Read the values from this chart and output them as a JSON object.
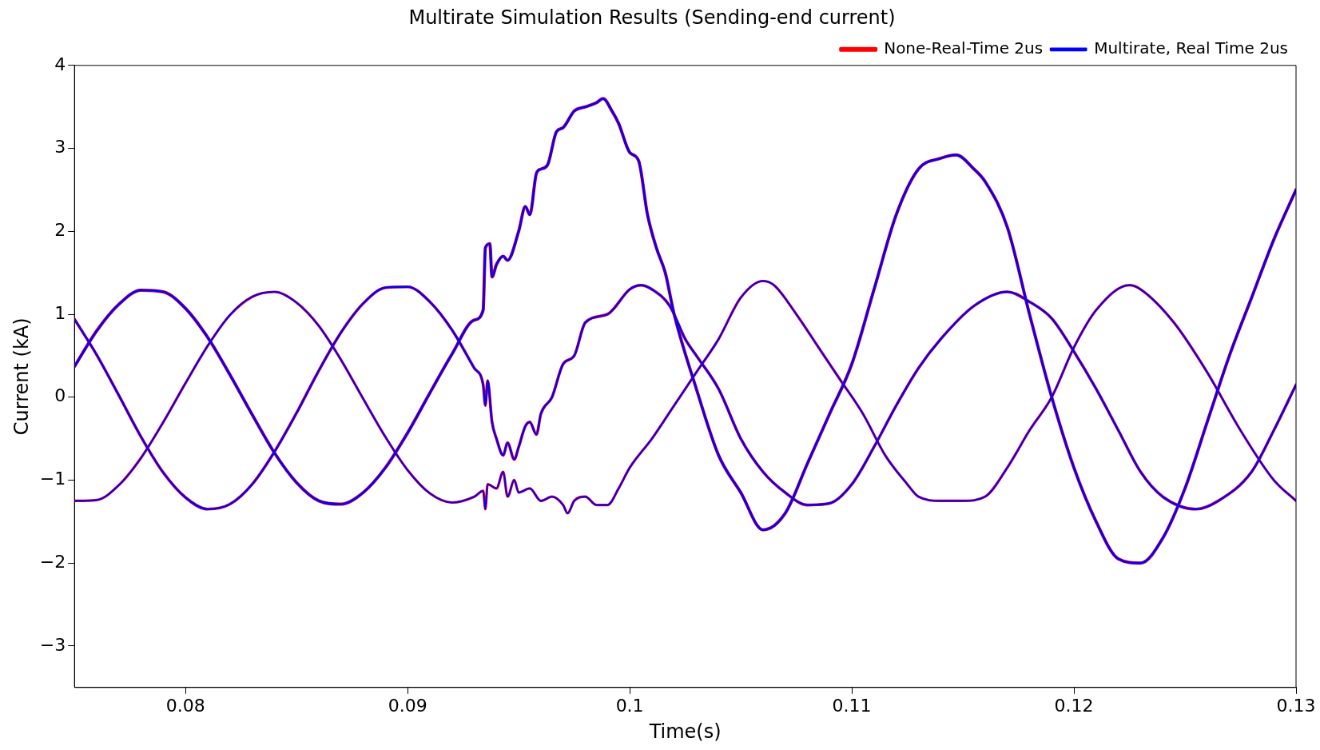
{
  "chart_data": {
    "type": "line",
    "title": "Multirate Simulation Results (Sending-end current)",
    "xlabel": "Time(s)",
    "ylabel": "Current (kA)",
    "xlim": [
      0.075,
      0.13
    ],
    "xticks": [
      0.08,
      0.09,
      0.1,
      0.11,
      0.12,
      0.13
    ],
    "ylim": [
      -3.5,
      4
    ],
    "yticks": [
      {
        "value": -3,
        "label": "−3"
      },
      {
        "value": -2,
        "label": "−2"
      },
      {
        "value": -1,
        "label": "−1"
      },
      0,
      1,
      2,
      3,
      4
    ],
    "grid": false,
    "legend": "top right",
    "marker": "none",
    "line_style": "solid",
    "series": [
      {
        "name": "None-Real-Time 2us",
        "color": "#ff0000",
        "x": [
          0.075,
          0.076,
          0.077,
          0.078,
          0.079,
          0.08,
          0.081,
          0.082,
          0.083,
          0.084,
          0.085,
          0.086,
          0.087,
          0.088,
          0.089,
          0.09,
          0.091,
          0.092,
          0.093,
          0.0934,
          0.0935,
          0.0937,
          0.0938,
          0.094,
          0.0943,
          0.0945,
          0.095,
          0.0953,
          0.0955,
          0.0958,
          0.096,
          0.0963,
          0.0967,
          0.097,
          0.0975,
          0.098,
          0.0985,
          0.0988,
          0.0992,
          0.0995,
          0.1,
          0.1004,
          0.1008,
          0.1012,
          0.1016,
          0.102,
          0.103,
          0.104,
          0.105,
          0.106,
          0.107,
          0.108,
          0.109,
          0.11,
          0.111,
          0.112,
          0.113,
          0.114,
          0.1147,
          0.1155,
          0.116,
          0.117,
          0.118,
          0.119,
          0.12,
          0.121,
          0.122,
          0.123,
          0.124,
          0.125,
          0.126,
          0.127,
          0.128,
          0.129,
          0.13
        ],
        "values": [
          0.37,
          0.8,
          1.12,
          1.29,
          1.27,
          1.07,
          0.72,
          0.27,
          -0.21,
          -0.67,
          -1.03,
          -1.25,
          -1.29,
          -1.15,
          -0.85,
          -0.43,
          0.05,
          0.52,
          0.93,
          1.05,
          1.8,
          1.85,
          1.45,
          1.6,
          1.7,
          1.65,
          2.0,
          2.3,
          2.2,
          2.7,
          2.75,
          2.8,
          3.2,
          3.25,
          3.45,
          3.5,
          3.55,
          3.6,
          3.45,
          3.3,
          2.95,
          2.85,
          2.2,
          1.8,
          1.5,
          1.0,
          0.1,
          -0.7,
          -1.15,
          -1.6,
          -1.4,
          -0.8,
          -0.2,
          0.4,
          1.3,
          2.2,
          2.75,
          2.88,
          2.92,
          2.75,
          2.6,
          2.05,
          1.0,
          0.0,
          -0.85,
          -1.5,
          -1.95,
          -2.0,
          -1.7,
          -1.1,
          -0.3,
          0.5,
          1.2,
          1.9,
          2.5
        ]
      },
      {
        "color": "#ff0000",
        "x": [
          0.075,
          0.076,
          0.077,
          0.078,
          0.079,
          0.08,
          0.081,
          0.082,
          0.083,
          0.084,
          0.085,
          0.086,
          0.087,
          0.088,
          0.089,
          0.09,
          0.091,
          0.092,
          0.093,
          0.0934,
          0.0935,
          0.0936,
          0.0938,
          0.094,
          0.0943,
          0.0945,
          0.0948,
          0.095,
          0.0953,
          0.0955,
          0.0958,
          0.096,
          0.0965,
          0.097,
          0.0975,
          0.098,
          0.099,
          0.1,
          0.1005,
          0.101,
          0.1018,
          0.1025,
          0.103,
          0.104,
          0.105,
          0.106,
          0.107,
          0.108,
          0.109,
          0.11,
          0.111,
          0.112,
          0.113,
          0.114,
          0.1155,
          0.117,
          0.118,
          0.119,
          0.12,
          0.121,
          0.122,
          0.123,
          0.124,
          0.1255,
          0.1265,
          0.128,
          0.129,
          0.13
        ],
        "values": [
          0.94,
          0.51,
          0.02,
          -0.48,
          -0.91,
          -1.21,
          -1.35,
          -1.29,
          -1.05,
          -0.66,
          -0.19,
          0.32,
          0.78,
          1.13,
          1.32,
          1.33,
          1.15,
          0.81,
          0.35,
          0.15,
          -0.1,
          0.2,
          -0.3,
          -0.5,
          -0.7,
          -0.55,
          -0.75,
          -0.6,
          -0.35,
          -0.3,
          -0.45,
          -0.2,
          0.0,
          0.4,
          0.5,
          0.9,
          1.0,
          1.3,
          1.35,
          1.3,
          1.1,
          0.7,
          0.5,
          0.1,
          -0.5,
          -0.9,
          -1.15,
          -1.3,
          -1.28,
          -1.05,
          -0.6,
          -0.1,
          0.35,
          0.7,
          1.1,
          1.27,
          1.15,
          0.95,
          0.55,
          0.1,
          -0.4,
          -0.9,
          -1.2,
          -1.35,
          -1.25,
          -0.9,
          -0.4,
          0.15
        ]
      },
      {
        "color": "#ff0000",
        "x": [
          0.075,
          0.076,
          0.077,
          0.078,
          0.079,
          0.08,
          0.081,
          0.082,
          0.083,
          0.084,
          0.085,
          0.086,
          0.087,
          0.088,
          0.089,
          0.09,
          0.091,
          0.092,
          0.093,
          0.0934,
          0.0935,
          0.0936,
          0.094,
          0.0943,
          0.0945,
          0.0948,
          0.095,
          0.0955,
          0.096,
          0.0965,
          0.097,
          0.0972,
          0.0975,
          0.098,
          0.0985,
          0.099,
          0.0995,
          0.1,
          0.101,
          0.102,
          0.103,
          0.104,
          0.105,
          0.106,
          0.1065,
          0.1075,
          0.1085,
          0.1095,
          0.1105,
          0.1115,
          0.1125,
          0.113,
          0.114,
          0.115,
          0.116,
          0.117,
          0.118,
          0.119,
          0.12,
          0.121,
          0.1225,
          0.123,
          0.1245,
          0.126,
          0.1275,
          0.129,
          0.13
        ],
        "values": [
          -1.25,
          -1.24,
          -1.06,
          -0.73,
          -0.3,
          0.17,
          0.62,
          0.99,
          1.21,
          1.27,
          1.14,
          0.86,
          0.45,
          -0.02,
          -0.48,
          -0.88,
          -1.16,
          -1.27,
          -1.2,
          -1.13,
          -1.35,
          -1.05,
          -1.1,
          -0.9,
          -1.2,
          -1.0,
          -1.15,
          -1.1,
          -1.25,
          -1.2,
          -1.3,
          -1.4,
          -1.25,
          -1.2,
          -1.3,
          -1.3,
          -1.1,
          -0.85,
          -0.5,
          -0.1,
          0.3,
          0.7,
          1.2,
          1.4,
          1.35,
          1.0,
          0.6,
          0.2,
          -0.2,
          -0.7,
          -1.05,
          -1.2,
          -1.25,
          -1.25,
          -1.2,
          -0.85,
          -0.4,
          0.0,
          0.6,
          1.05,
          1.35,
          1.3,
          0.9,
          0.3,
          -0.4,
          -1.0,
          -1.25
        ]
      },
      {
        "name": "Multirate, Real Time 2us",
        "color": "#0000ff",
        "x": [
          0.075,
          0.076,
          0.077,
          0.078,
          0.079,
          0.08,
          0.081,
          0.082,
          0.083,
          0.084,
          0.085,
          0.086,
          0.087,
          0.088,
          0.089,
          0.09,
          0.091,
          0.092,
          0.093,
          0.0934,
          0.0935,
          0.0937,
          0.0938,
          0.094,
          0.0943,
          0.0945,
          0.095,
          0.0953,
          0.0955,
          0.0958,
          0.096,
          0.0963,
          0.0967,
          0.097,
          0.0975,
          0.098,
          0.0985,
          0.0988,
          0.0992,
          0.0995,
          0.1,
          0.1004,
          0.1008,
          0.1012,
          0.1016,
          0.102,
          0.103,
          0.104,
          0.105,
          0.106,
          0.107,
          0.108,
          0.109,
          0.11,
          0.111,
          0.112,
          0.113,
          0.114,
          0.1147,
          0.1155,
          0.116,
          0.117,
          0.118,
          0.119,
          0.12,
          0.121,
          0.122,
          0.123,
          0.124,
          0.125,
          0.126,
          0.127,
          0.128,
          0.129,
          0.13
        ],
        "values": [
          0.37,
          0.8,
          1.12,
          1.29,
          1.27,
          1.07,
          0.72,
          0.27,
          -0.21,
          -0.67,
          -1.03,
          -1.25,
          -1.29,
          -1.15,
          -0.85,
          -0.43,
          0.05,
          0.52,
          0.93,
          1.05,
          1.8,
          1.85,
          1.45,
          1.6,
          1.7,
          1.65,
          2.0,
          2.3,
          2.2,
          2.7,
          2.75,
          2.8,
          3.2,
          3.25,
          3.45,
          3.5,
          3.55,
          3.6,
          3.45,
          3.3,
          2.95,
          2.85,
          2.2,
          1.8,
          1.5,
          1.0,
          0.1,
          -0.7,
          -1.15,
          -1.6,
          -1.4,
          -0.8,
          -0.2,
          0.4,
          1.3,
          2.2,
          2.75,
          2.88,
          2.92,
          2.75,
          2.6,
          2.05,
          1.0,
          0.0,
          -0.85,
          -1.5,
          -1.95,
          -2.0,
          -1.7,
          -1.1,
          -0.3,
          0.5,
          1.2,
          1.9,
          2.5
        ]
      },
      {
        "color": "#0000ff",
        "x": [
          0.075,
          0.076,
          0.077,
          0.078,
          0.079,
          0.08,
          0.081,
          0.082,
          0.083,
          0.084,
          0.085,
          0.086,
          0.087,
          0.088,
          0.089,
          0.09,
          0.091,
          0.092,
          0.093,
          0.0934,
          0.0935,
          0.0936,
          0.0938,
          0.094,
          0.0943,
          0.0945,
          0.0948,
          0.095,
          0.0953,
          0.0955,
          0.0958,
          0.096,
          0.0965,
          0.097,
          0.0975,
          0.098,
          0.099,
          0.1,
          0.1005,
          0.101,
          0.1018,
          0.1025,
          0.103,
          0.104,
          0.105,
          0.106,
          0.107,
          0.108,
          0.109,
          0.11,
          0.111,
          0.112,
          0.113,
          0.114,
          0.1155,
          0.117,
          0.118,
          0.119,
          0.12,
          0.121,
          0.122,
          0.123,
          0.124,
          0.1255,
          0.1265,
          0.128,
          0.129,
          0.13
        ],
        "values": [
          0.94,
          0.51,
          0.02,
          -0.48,
          -0.91,
          -1.21,
          -1.35,
          -1.29,
          -1.05,
          -0.66,
          -0.19,
          0.32,
          0.78,
          1.13,
          1.32,
          1.33,
          1.15,
          0.81,
          0.35,
          0.15,
          -0.1,
          0.2,
          -0.3,
          -0.5,
          -0.7,
          -0.55,
          -0.75,
          -0.6,
          -0.35,
          -0.3,
          -0.45,
          -0.2,
          0.0,
          0.4,
          0.5,
          0.9,
          1.0,
          1.3,
          1.35,
          1.3,
          1.1,
          0.7,
          0.5,
          0.1,
          -0.5,
          -0.9,
          -1.15,
          -1.3,
          -1.28,
          -1.05,
          -0.6,
          -0.1,
          0.35,
          0.7,
          1.1,
          1.27,
          1.15,
          0.95,
          0.55,
          0.1,
          -0.4,
          -0.9,
          -1.2,
          -1.35,
          -1.25,
          -0.9,
          -0.4,
          0.15
        ]
      },
      {
        "color": "#0000ff",
        "x": [
          0.075,
          0.076,
          0.077,
          0.078,
          0.079,
          0.08,
          0.081,
          0.082,
          0.083,
          0.084,
          0.085,
          0.086,
          0.087,
          0.088,
          0.089,
          0.09,
          0.091,
          0.092,
          0.093,
          0.0934,
          0.0935,
          0.0936,
          0.094,
          0.0943,
          0.0945,
          0.0948,
          0.095,
          0.0955,
          0.096,
          0.0965,
          0.097,
          0.0972,
          0.0975,
          0.098,
          0.0985,
          0.099,
          0.0995,
          0.1,
          0.101,
          0.102,
          0.103,
          0.104,
          0.105,
          0.106,
          0.1065,
          0.1075,
          0.1085,
          0.1095,
          0.1105,
          0.1115,
          0.1125,
          0.113,
          0.114,
          0.115,
          0.116,
          0.117,
          0.118,
          0.119,
          0.12,
          0.121,
          0.1225,
          0.123,
          0.1245,
          0.126,
          0.1275,
          0.129,
          0.13
        ],
        "values": [
          -1.25,
          -1.24,
          -1.06,
          -0.73,
          -0.3,
          0.17,
          0.62,
          0.99,
          1.21,
          1.27,
          1.14,
          0.86,
          0.45,
          -0.02,
          -0.48,
          -0.88,
          -1.16,
          -1.27,
          -1.2,
          -1.13,
          -1.35,
          -1.05,
          -1.1,
          -0.9,
          -1.2,
          -1.0,
          -1.15,
          -1.1,
          -1.25,
          -1.2,
          -1.3,
          -1.4,
          -1.25,
          -1.2,
          -1.3,
          -1.3,
          -1.1,
          -0.85,
          -0.5,
          -0.1,
          0.3,
          0.7,
          1.2,
          1.4,
          1.35,
          1.0,
          0.6,
          0.2,
          -0.2,
          -0.7,
          -1.05,
          -1.2,
          -1.25,
          -1.25,
          -1.2,
          -0.85,
          -0.4,
          0.0,
          0.6,
          1.05,
          1.35,
          1.3,
          0.9,
          0.3,
          -0.4,
          -1.0,
          -1.25
        ]
      }
    ]
  }
}
